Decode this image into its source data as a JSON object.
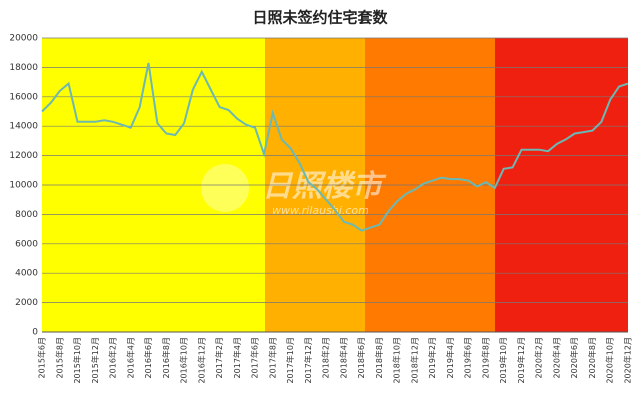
{
  "chart_data": {
    "type": "line",
    "title": "日照未签约住宅套数",
    "watermark": {
      "text": "日照楼市",
      "url": "www.rilaushi.com"
    },
    "categories": [
      "2015年6月",
      null,
      "2015年8月",
      null,
      "2015年10月",
      null,
      "2015年12月",
      null,
      "2016年2月",
      null,
      "2016年4月",
      null,
      "2016年6月",
      null,
      "2016年8月",
      null,
      "2016年10月",
      null,
      "2016年12月",
      null,
      "2017年2月",
      null,
      "2017年4月",
      null,
      "2017年6月",
      null,
      "2017年8月",
      null,
      "2017年10月",
      null,
      "2017年12月",
      null,
      "2018年2月",
      null,
      "2018年4月",
      null,
      "2018年6月",
      null,
      "2018年8月",
      null,
      "2018年10月",
      null,
      "2018年12月",
      null,
      "2019年2月",
      null,
      "2019年4月",
      null,
      "2019年6月",
      null,
      "2019年8月",
      null,
      "2019年10月",
      null,
      "2019年12月",
      null,
      "2020年2月",
      null,
      "2020年4月",
      null,
      "2020年6月",
      null,
      "2020年8月",
      null,
      "2020年10月",
      null,
      "2020年12月"
    ],
    "series": [
      {
        "name": "未签约住宅套数",
        "color": "#6bb8b4",
        "values": [
          15000,
          15600,
          16400,
          16900,
          14300,
          14300,
          14300,
          14400,
          14300,
          14100,
          13900,
          15300,
          18300,
          14200,
          13500,
          13400,
          14200,
          16500,
          17700,
          16500,
          15300,
          15100,
          14500,
          14100,
          13900,
          12100,
          14900,
          13100,
          12500,
          11500,
          10200,
          9700,
          9000,
          8300,
          7500,
          7300,
          6900,
          7100,
          7300,
          8200,
          8900,
          9400,
          9700,
          10100,
          10300,
          10500,
          10400,
          10400,
          10300,
          9900,
          10200,
          9800,
          11100,
          11200,
          12400,
          12400,
          12400,
          12300,
          12800,
          13100,
          13500,
          13600,
          13700,
          14300,
          15800,
          16700,
          16900
        ]
      }
    ],
    "ylim": [
      0,
      20000
    ],
    "yticks": [
      0,
      2000,
      4000,
      6000,
      8000,
      10000,
      12000,
      14000,
      16000,
      18000,
      20000
    ],
    "grid": true
  }
}
